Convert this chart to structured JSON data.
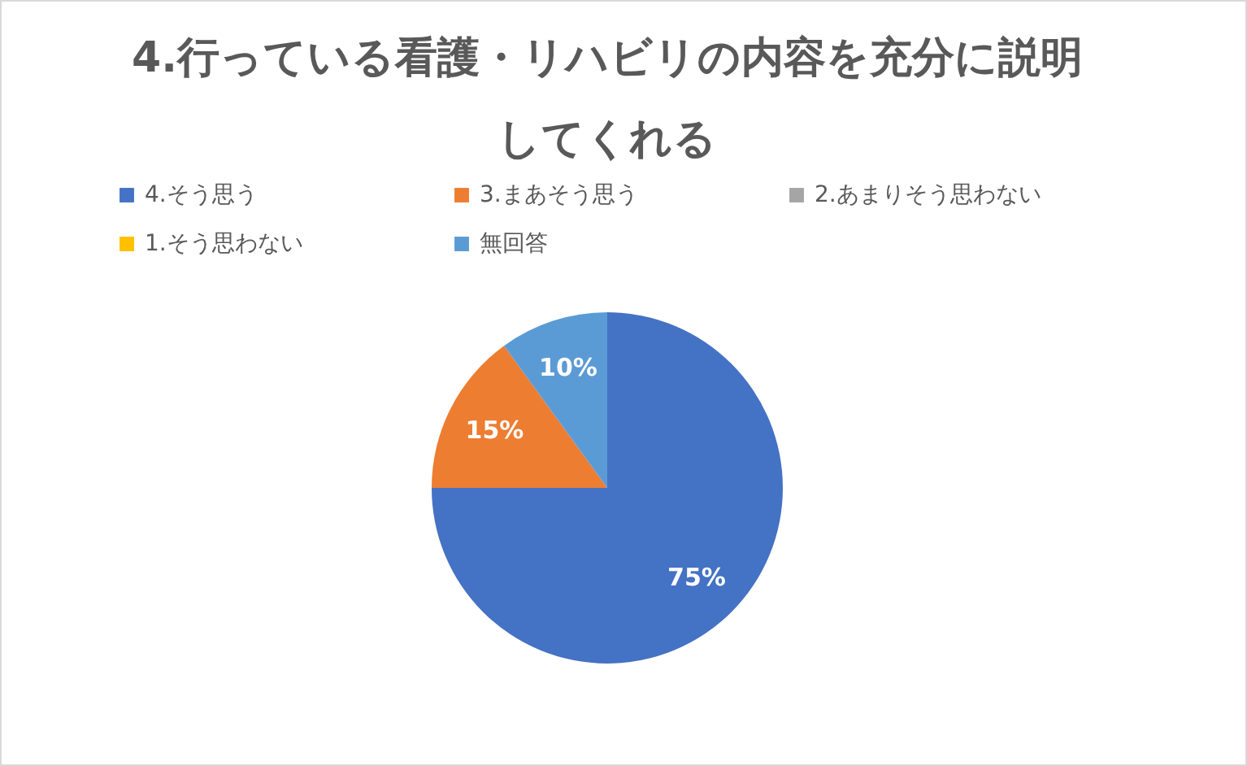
{
  "chart_data": {
    "type": "pie",
    "title": "4.行っている看護・リハビリの内容を充分に説明してくれる",
    "categories": [
      "4.そう思う",
      "3.まあそう思う",
      "2.あまりそう思わない",
      "1.そう思わない",
      "無回答"
    ],
    "values": [
      75,
      15,
      0,
      0,
      10
    ],
    "colors": [
      "#4472c4",
      "#ed7d31",
      "#a5a5a5",
      "#ffc000",
      "#5b9bd5"
    ],
    "value_labels": [
      "75%",
      "15%",
      null,
      null,
      "10%"
    ],
    "legend": "top"
  }
}
